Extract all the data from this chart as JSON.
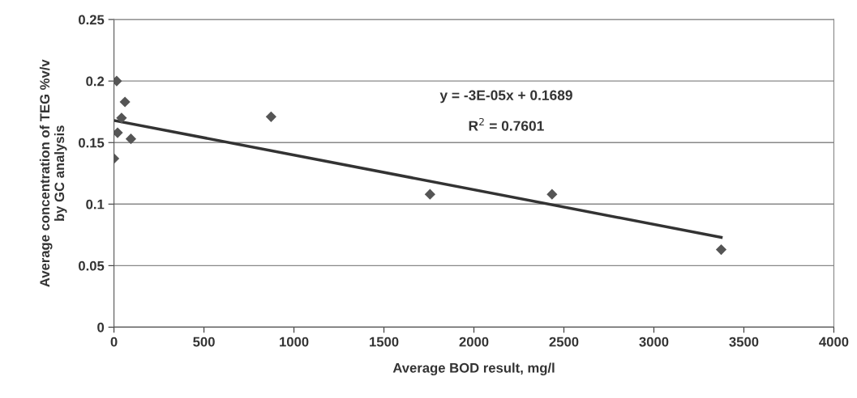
{
  "chart_data": {
    "type": "scatter",
    "xlabel": "Average BOD result, mg/l",
    "ylabel": "Average concentration of TEG %v/v\nby GC analysis",
    "series": [
      {
        "color": "#555555",
        "marker": "diamond",
        "x": [
          0,
          15,
          61,
          42,
          20,
          94,
          873,
          1756,
          2434,
          3374
        ],
        "values": [
          0.137,
          0.2,
          0.183,
          0.17,
          0.158,
          0.153,
          0.171,
          0.108,
          0.108,
          0.063
        ]
      },
      {
        "type": "line",
        "color": "#333333",
        "marker": "none",
        "line_style": "solid",
        "x": [
          0,
          3374
        ],
        "values": [
          0.168,
          0.073
        ]
      }
    ],
    "annotations": [
      "y = -3E-05x + 0.1689",
      "R$^{2}$ = 0.7601"
    ],
    "xlim": [
      0,
      4000
    ],
    "xticks": [
      0,
      500,
      1000,
      1500,
      2000,
      2500,
      3000,
      3500,
      4000
    ],
    "ylim": [
      0,
      0.25
    ],
    "yticks": [
      0,
      0.05,
      0.1,
      0.15,
      0.2,
      0.25
    ],
    "grid": "y",
    "legend": false
  }
}
